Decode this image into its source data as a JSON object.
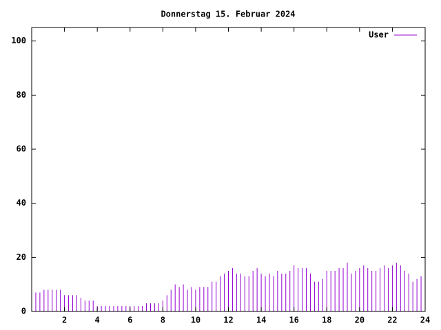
{
  "chart_data": {
    "type": "impulse",
    "title": "Donnerstag 15. Februar 2024",
    "x": [
      0,
      0.25,
      0.5,
      0.75,
      1,
      1.25,
      1.5,
      1.75,
      2,
      2.25,
      2.5,
      2.75,
      3,
      3.25,
      3.5,
      3.75,
      4,
      4.25,
      4.5,
      4.75,
      5,
      5.25,
      5.5,
      5.75,
      6,
      6.25,
      6.5,
      6.75,
      7,
      7.25,
      7.5,
      7.75,
      8,
      8.25,
      8.5,
      8.75,
      9,
      9.25,
      9.5,
      9.75,
      10,
      10.25,
      10.5,
      10.75,
      11,
      11.25,
      11.5,
      11.75,
      12,
      12.25,
      12.5,
      12.75,
      13,
      13.25,
      13.5,
      13.75,
      14,
      14.25,
      14.5,
      14.75,
      15,
      15.25,
      15.5,
      15.75,
      16,
      16.25,
      16.5,
      16.75,
      17,
      17.25,
      17.5,
      17.75,
      18,
      18.25,
      18.5,
      18.75,
      19,
      19.25,
      19.5,
      19.75,
      20,
      20.25,
      20.5,
      20.75,
      21,
      21.25,
      21.5,
      21.75,
      22,
      22.25,
      22.5,
      22.75,
      23,
      23.25,
      23.5,
      23.75
    ],
    "series": [
      {
        "name": "User",
        "color": "#9400d3",
        "values": [
          7,
          7,
          7,
          8,
          8,
          8,
          8,
          8,
          6,
          6,
          6,
          6,
          5,
          4,
          4,
          4,
          2,
          2,
          2,
          2,
          2,
          2,
          2,
          2,
          2,
          2,
          2,
          2,
          3,
          3,
          3,
          3,
          4,
          6,
          8,
          10,
          9,
          10,
          8,
          9,
          8,
          9,
          9,
          9,
          11,
          11,
          13,
          14,
          15,
          16,
          14,
          14,
          13,
          13,
          15,
          16,
          14,
          13,
          14,
          13,
          15,
          14,
          14,
          15,
          17,
          16,
          16,
          16,
          14,
          11,
          11,
          12,
          15,
          15,
          15,
          16,
          16,
          18,
          14,
          15,
          16,
          17,
          16,
          15,
          15,
          16,
          17,
          16,
          17,
          18,
          17,
          15,
          14,
          11,
          12,
          13
        ]
      }
    ],
    "xlim": [
      0,
      24
    ],
    "xticks": [
      2,
      4,
      6,
      8,
      10,
      12,
      14,
      16,
      18,
      20,
      22,
      24
    ],
    "ylim": [
      0,
      105
    ],
    "yticks": [
      0,
      20,
      40,
      60,
      80,
      100
    ],
    "legend": "top-right"
  }
}
